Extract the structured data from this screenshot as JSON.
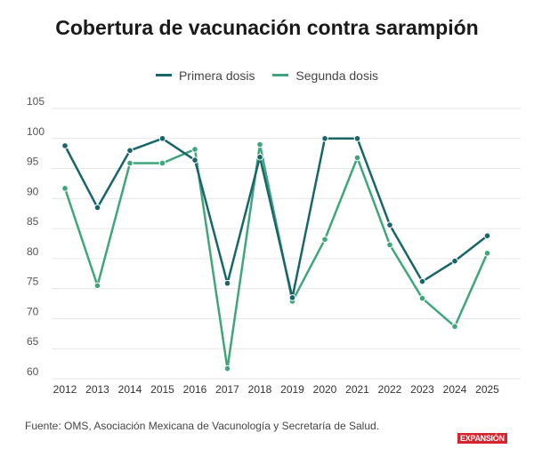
{
  "chart_data": {
    "type": "line",
    "title": "Cobertura de vacunación contra sarampión",
    "x": [
      "2012",
      "2013",
      "2014",
      "2015",
      "2016",
      "2017",
      "2018",
      "2019",
      "2020",
      "2021",
      "2022",
      "2023",
      "2024",
      "2025"
    ],
    "yticks": [
      60,
      65,
      70,
      75,
      80,
      85,
      90,
      95,
      100,
      105
    ],
    "ylim": [
      60,
      105
    ],
    "grid": true,
    "legend_placement": "top-center",
    "series": [
      {
        "name": "Primera dosis",
        "color": "#19666a",
        "values": [
          98.8,
          88.5,
          98.0,
          100,
          96.4,
          75.9,
          96.9,
          73.5,
          100,
          100,
          85.6,
          76.2,
          79.6,
          83.8
        ]
      },
      {
        "name": "Segunda dosis",
        "color": "#3fa67c",
        "values": [
          91.7,
          75.5,
          95.9,
          95.9,
          98.2,
          61.7,
          99.0,
          72.9,
          83.2,
          96.8,
          82.3,
          73.4,
          68.7,
          80.9
        ]
      }
    ]
  },
  "source": "Fuente: OMS, Asociación Mexicana de Vacunología y Secretaría de Salud.",
  "logo": "EXPANSIÓN"
}
